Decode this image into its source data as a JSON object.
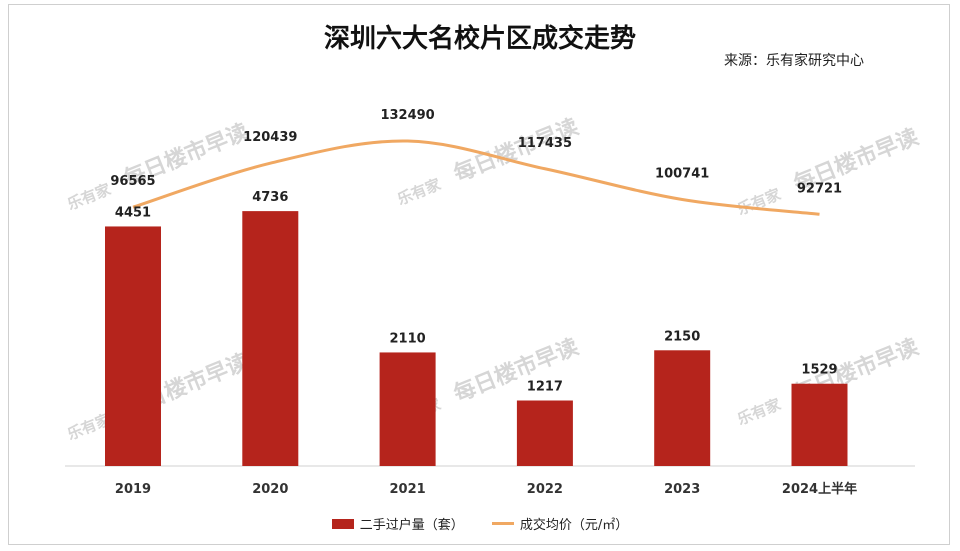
{
  "title": "深圳六大名校片区成交走势",
  "source": "来源：乐有家研究中心",
  "watermarks": [
    "乐有家",
    "每日楼市早读"
  ],
  "chart_data": {
    "type": "bar",
    "categories": [
      "2019",
      "2020",
      "2021",
      "2022",
      "2023",
      "2024上半年"
    ],
    "series": [
      {
        "name": "二手过户量（套）",
        "kind": "bar",
        "color": "#b5241c",
        "values": [
          4451,
          4736,
          2110,
          1217,
          2150,
          1529
        ]
      },
      {
        "name": "成交均价（元/㎡）",
        "kind": "line",
        "color": "#f0a862",
        "values": [
          96565,
          120439,
          132490,
          117435,
          100741,
          92721
        ]
      }
    ],
    "bar_ylim": [
      0,
      5500
    ],
    "line_ylim": [
      0,
      145000
    ]
  }
}
